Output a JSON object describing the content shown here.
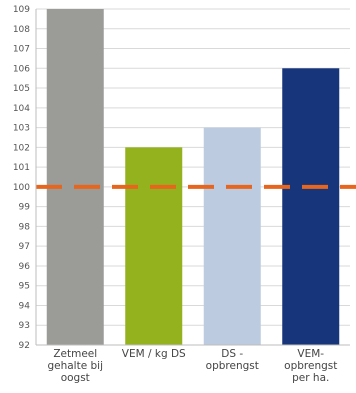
{
  "chart_data": {
    "type": "bar",
    "categories": [
      [
        "Zetmeel",
        "gehalte bij",
        "oogst"
      ],
      [
        "VEM / kg DS"
      ],
      [
        "DS -",
        "opbrengst"
      ],
      [
        "VEM-",
        "opbrengst",
        "per ha."
      ]
    ],
    "values": [
      109,
      102,
      103,
      106
    ],
    "bar_colors": [
      "#9b9b98",
      "#93b21d",
      "#bccbe0",
      "#16357a"
    ],
    "reference_line": {
      "value": 100,
      "color": "#e8651e",
      "style": "dashed"
    },
    "ylim": [
      92,
      109
    ],
    "yticks": [
      92,
      93,
      94,
      95,
      96,
      97,
      98,
      99,
      100,
      101,
      102,
      103,
      104,
      105,
      106,
      107,
      108,
      109
    ],
    "grid": true,
    "title": "",
    "xlabel": "",
    "ylabel": ""
  }
}
